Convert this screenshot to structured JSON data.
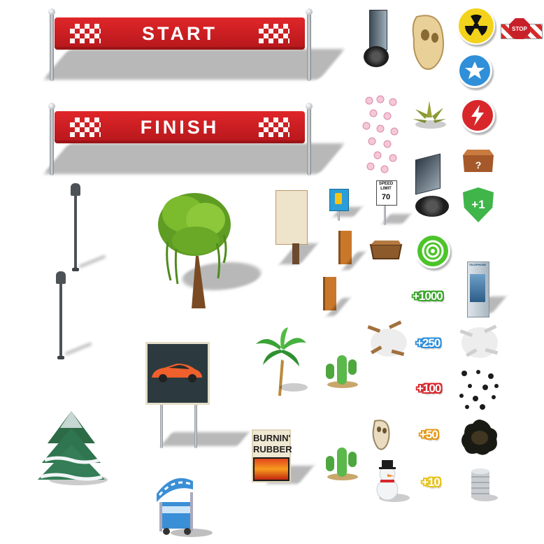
{
  "banners": {
    "start": "START",
    "finish": "FINISH"
  },
  "speed_sign": {
    "line1": "SPEED",
    "line2": "LIMIT",
    "value": "70"
  },
  "stop_sign": "STOP",
  "poster": {
    "line1": "BURNIN'",
    "line2": "RUBBER"
  },
  "booth_label": "TELEPHONE",
  "shield_label": "+1",
  "score_popups": [
    {
      "text": "+1000",
      "color": "#3aa42a"
    },
    {
      "text": "+250",
      "color": "#2f8fd8"
    },
    {
      "text": "+100",
      "color": "#d8262b"
    },
    {
      "text": "+50",
      "color": "#e49a1d"
    },
    {
      "text": "+10",
      "color": "#e8c21a"
    }
  ],
  "colors": {
    "banner_red": "#d11f24",
    "radiation_yellow": "#f3d21b",
    "star_blue": "#2f8fd8",
    "lightning_red": "#d8262b",
    "shield_green": "#39b54a",
    "nitro_green": "#4cc42a"
  },
  "icons": [
    "radiation-icon",
    "star-icon",
    "lightning-icon",
    "mystery-box-icon",
    "shield-icon",
    "speed-disc-icon"
  ]
}
